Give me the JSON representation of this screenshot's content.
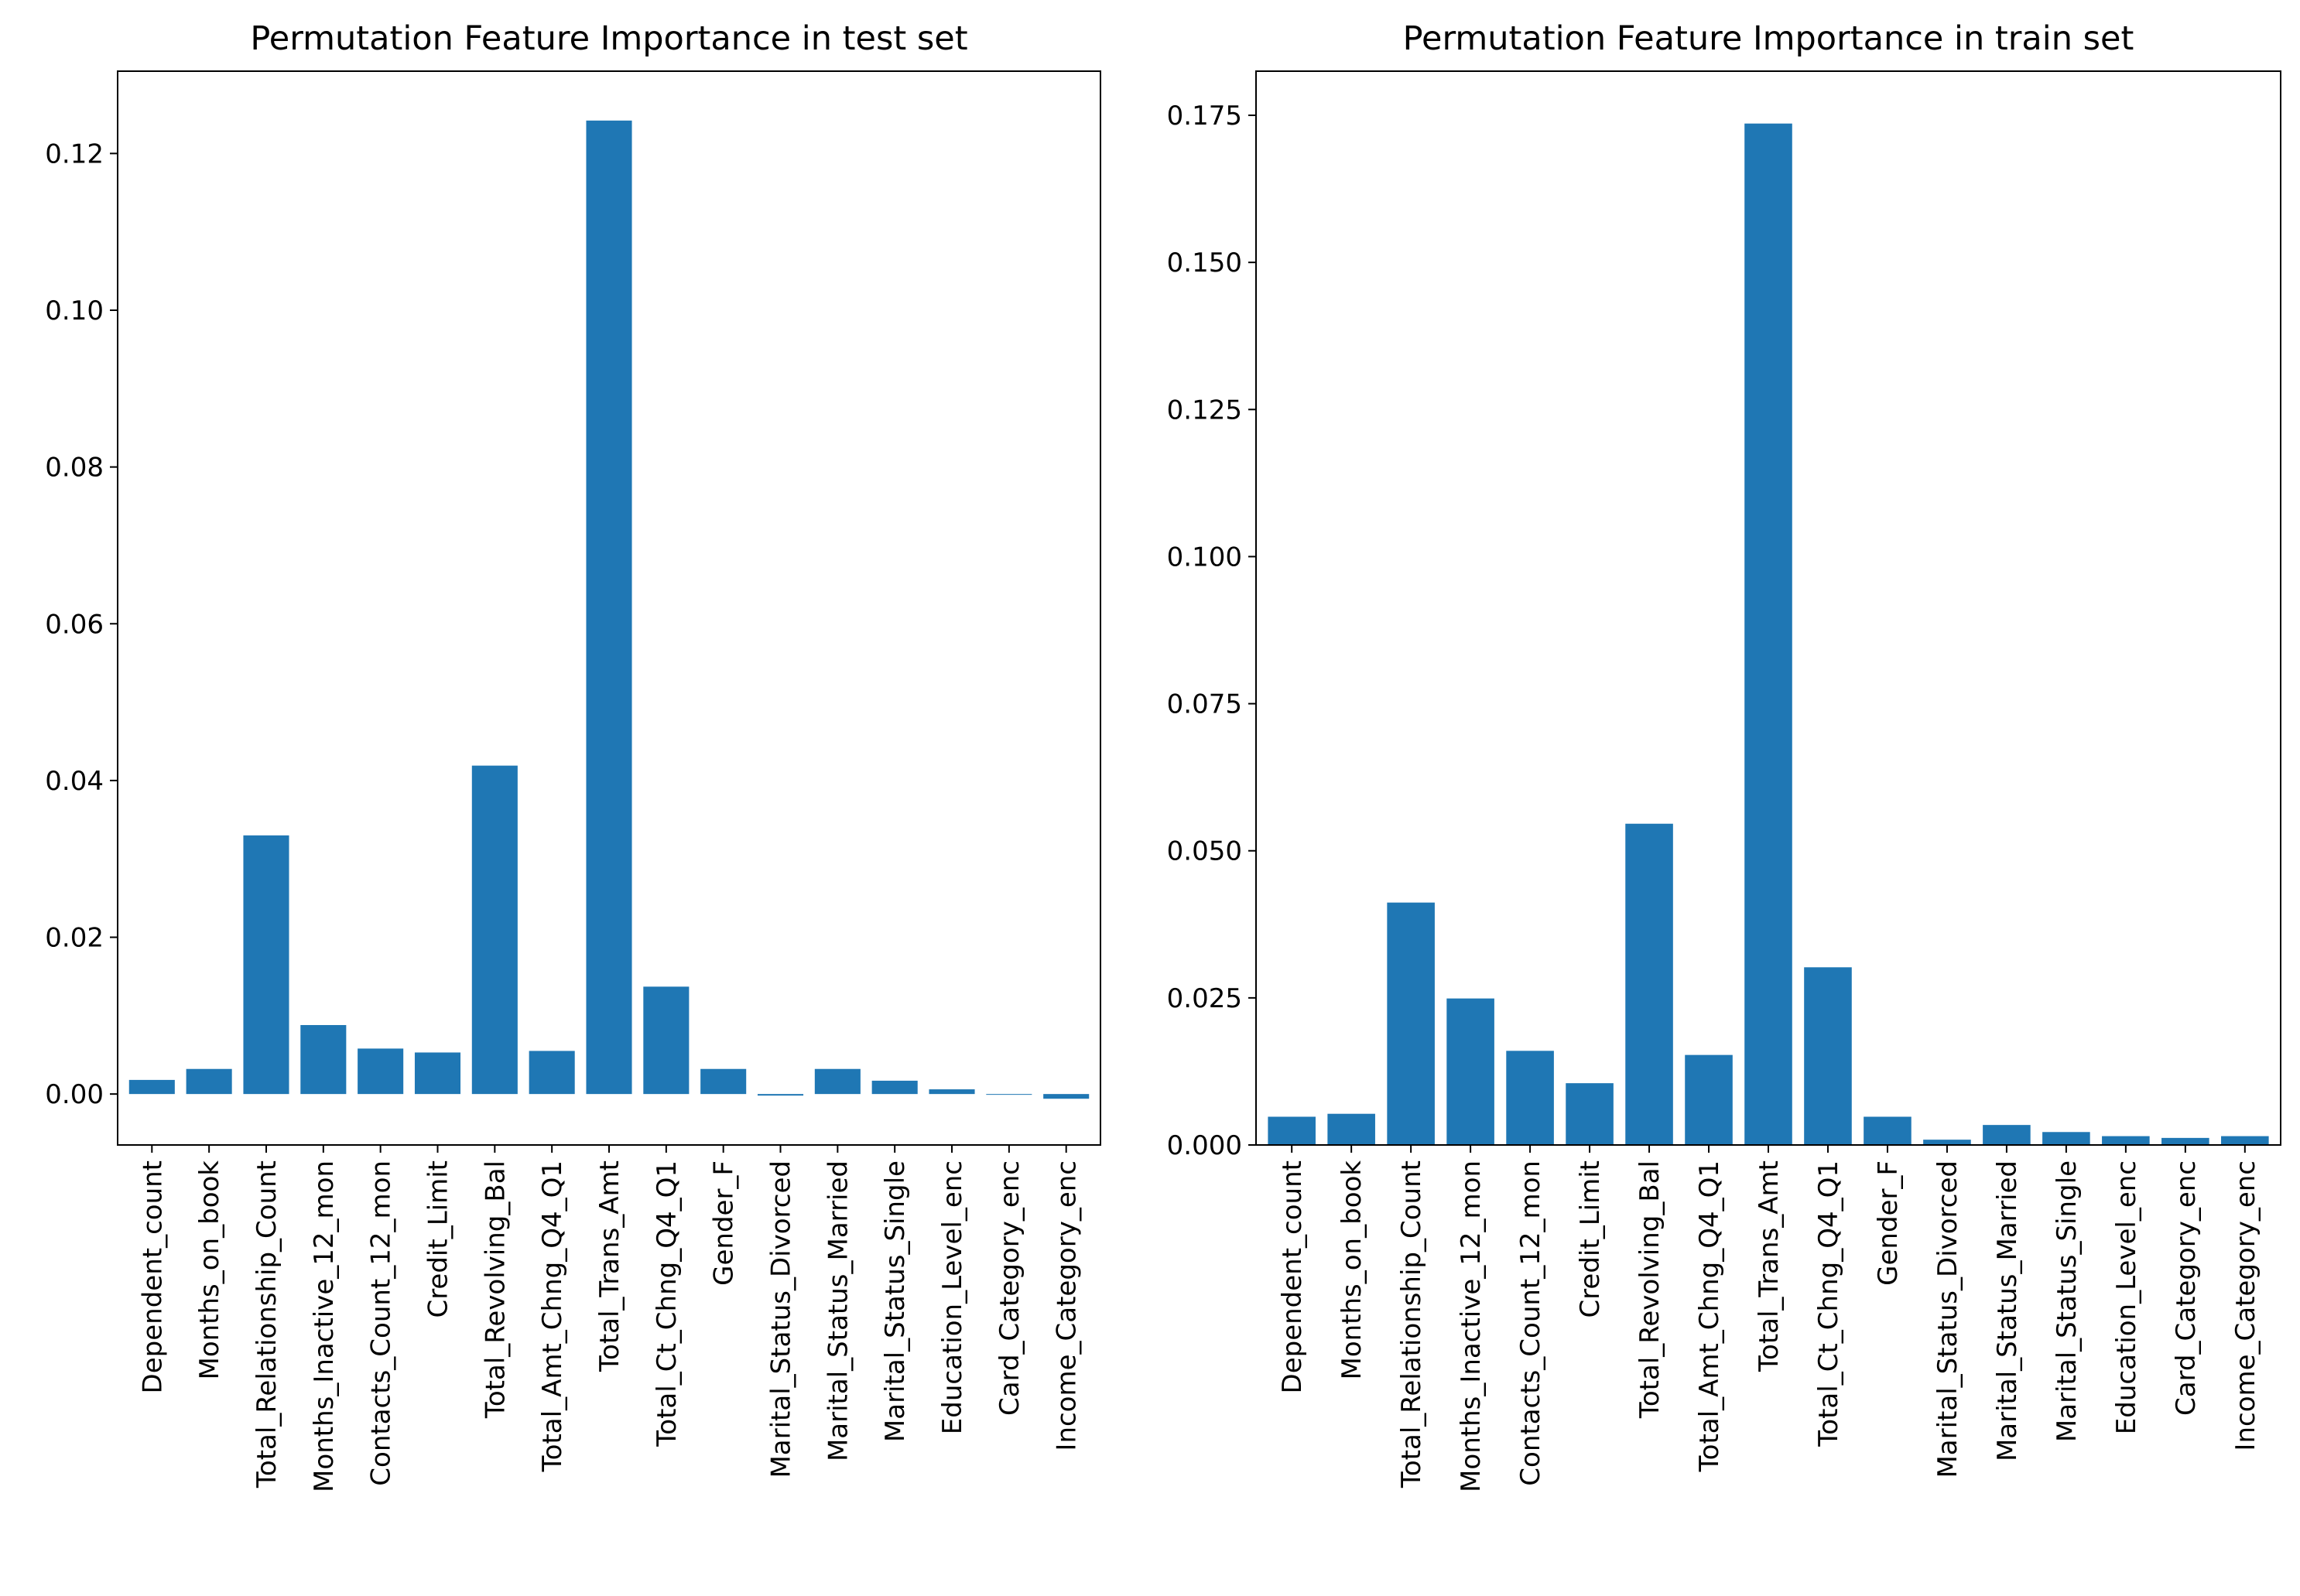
{
  "colors": {
    "bar": "#1f77b4",
    "axes": "#000000",
    "background": "#ffffff"
  },
  "chart_data": [
    {
      "type": "bar",
      "title": "Permutation Feature Importance in test set",
      "xlabel": "",
      "ylabel": "",
      "ylim": [
        -0.0065,
        0.1305
      ],
      "yticks": [
        0.0,
        0.02,
        0.04,
        0.06,
        0.08,
        0.1,
        0.12
      ],
      "ytick_labels": [
        "0.00",
        "0.02",
        "0.04",
        "0.06",
        "0.08",
        "0.10",
        "0.12"
      ],
      "grid": false,
      "categories": [
        "Dependent_count",
        "Months_on_book",
        "Total_Relationship_Count",
        "Months_Inactive_12_mon",
        "Contacts_Count_12_mon",
        "Credit_Limit",
        "Total_Revolving_Bal",
        "Total_Amt_Chng_Q4_Q1",
        "Total_Trans_Amt",
        "Total_Ct_Chng_Q4_Q1",
        "Gender_F",
        "Marital_Status_Divorced",
        "Marital_Status_Married",
        "Marital_Status_Single",
        "Education_Level_enc",
        "Card_Category_enc",
        "Income_Category_enc"
      ],
      "values": [
        0.0018,
        0.0032,
        0.033,
        0.0088,
        0.0058,
        0.0053,
        0.0419,
        0.0055,
        0.1242,
        0.0137,
        0.0032,
        -0.0002,
        0.0032,
        0.0017,
        0.0006,
        0.0,
        -0.0006
      ]
    },
    {
      "type": "bar",
      "title": "Permutation Feature Importance in train set",
      "xlabel": "",
      "ylabel": "",
      "ylim": [
        0.0,
        0.1825
      ],
      "yticks": [
        0.0,
        0.025,
        0.05,
        0.075,
        0.1,
        0.125,
        0.15,
        0.175
      ],
      "ytick_labels": [
        "0.000",
        "0.025",
        "0.050",
        "0.075",
        "0.100",
        "0.125",
        "0.150",
        "0.175"
      ],
      "grid": false,
      "categories": [
        "Dependent_count",
        "Months_on_book",
        "Total_Relationship_Count",
        "Months_Inactive_12_mon",
        "Contacts_Count_12_mon",
        "Credit_Limit",
        "Total_Revolving_Bal",
        "Total_Amt_Chng_Q4_Q1",
        "Total_Trans_Amt",
        "Total_Ct_Chng_Q4_Q1",
        "Gender_F",
        "Marital_Status_Divorced",
        "Marital_Status_Married",
        "Marital_Status_Single",
        "Education_Level_enc",
        "Card_Category_enc",
        "Income_Category_enc"
      ],
      "values": [
        0.0048,
        0.0053,
        0.0412,
        0.0249,
        0.016,
        0.0105,
        0.0546,
        0.0153,
        0.1736,
        0.0302,
        0.0048,
        0.0009,
        0.0034,
        0.0022,
        0.0015,
        0.0012,
        0.0015
      ]
    }
  ]
}
